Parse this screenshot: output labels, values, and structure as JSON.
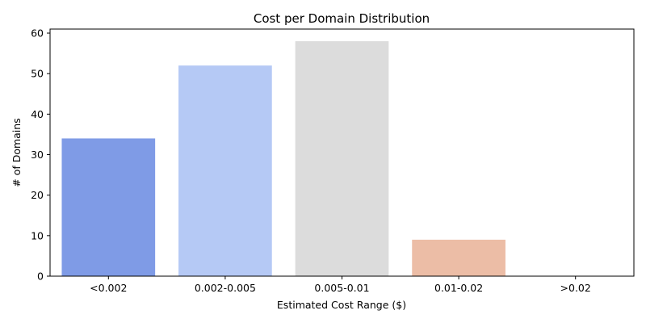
{
  "chart_data": {
    "type": "bar",
    "title": "Cost per Domain Distribution",
    "xlabel": "Estimated Cost Range ($)",
    "ylabel": "# of Domains",
    "categories": [
      "<0.002",
      "0.002-0.005",
      "0.005-0.01",
      "0.01-0.02",
      ">0.02"
    ],
    "values": [
      34,
      52,
      58,
      9,
      0
    ],
    "colors": [
      "#7f9be6",
      "#b5c9f5",
      "#dcdcdc",
      "#ecbda6",
      "#e8846a"
    ],
    "ylim": [
      0,
      61
    ],
    "yticks": [
      0,
      10,
      20,
      30,
      40,
      50,
      60
    ],
    "grid": false,
    "legend": false
  }
}
